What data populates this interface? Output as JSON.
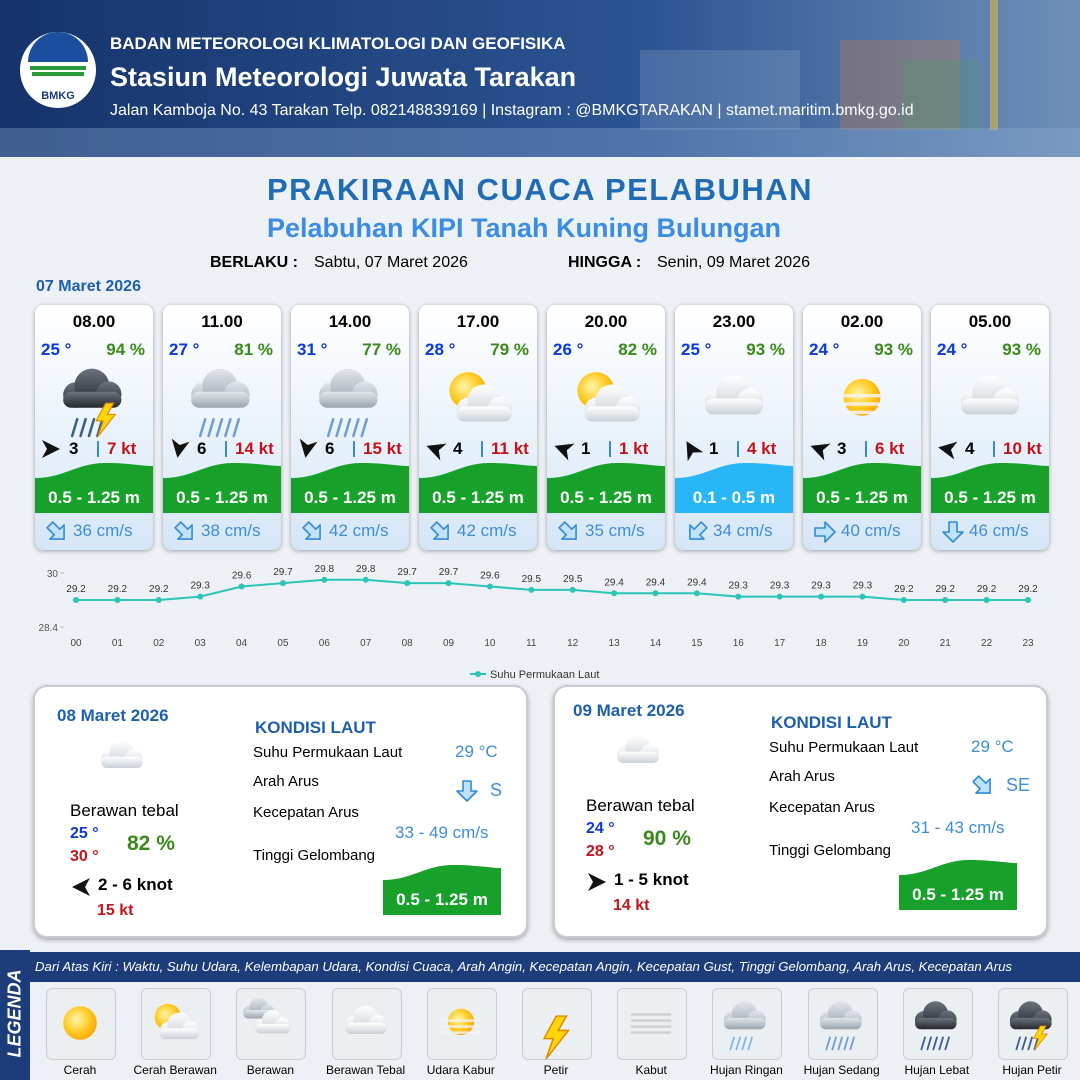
{
  "header": {
    "logo": "BMKG",
    "org": "BADAN METEOROLOGI KLIMATOLOGI DAN GEOFISIKA",
    "station": "Stasiun Meteorologi Juwata Tarakan",
    "contact": "Jalan Kamboja No. 43 Tarakan  Telp. 082148839169 | Instagram : @BMKGTARAKAN | stamet.maritim.bmkg.go.id"
  },
  "title": "PRAKIRAAN CUACA PELABUHAN",
  "subtitle": "Pelabuhan KIPI Tanah Kuning Bulungan",
  "validity": {
    "from_label": "BERLAKU :",
    "from": "Sabtu, 07 Maret 2026",
    "to_label": "HINGGA :",
    "to": "Senin, 09 Maret 2026"
  },
  "today": {
    "date": "07 Maret 2026",
    "forecasts": [
      {
        "time": "08.00",
        "temp": "25 °",
        "humidity": "94 %",
        "icon": "Hujan Petir",
        "wind_dir_deg": 0,
        "wind_speed": "3",
        "gust": "7 kt",
        "wave": "0.5 - 1.25 m",
        "wave_color": "#17a02a",
        "current_dir_deg": 45,
        "current": "36 cm/s"
      },
      {
        "time": "11.00",
        "temp": "27 °",
        "humidity": "81 %",
        "icon": "Hujan Sedang",
        "wind_dir_deg": 100,
        "wind_speed": "6",
        "gust": "14 kt",
        "wave": "0.5 - 1.25 m",
        "wave_color": "#17a02a",
        "current_dir_deg": 45,
        "current": "38 cm/s"
      },
      {
        "time": "14.00",
        "temp": "31 °",
        "humidity": "77 %",
        "icon": "Hujan Sedang",
        "wind_dir_deg": 100,
        "wind_speed": "6",
        "gust": "15 kt",
        "wave": "0.5 - 1.25 m",
        "wave_color": "#17a02a",
        "current_dir_deg": 45,
        "current": "42 cm/s"
      },
      {
        "time": "17.00",
        "temp": "28 °",
        "humidity": "79 %",
        "icon": "Cerah Berawan",
        "wind_dir_deg": 200,
        "wind_speed": "4",
        "gust": "11 kt",
        "wave": "0.5 - 1.25 m",
        "wave_color": "#17a02a",
        "current_dir_deg": 45,
        "current": "42 cm/s"
      },
      {
        "time": "20.00",
        "temp": "26 °",
        "humidity": "82 %",
        "icon": "Cerah Berawan",
        "wind_dir_deg": 200,
        "wind_speed": "1",
        "gust": "1 kt",
        "wave": "0.5 - 1.25 m",
        "wave_color": "#17a02a",
        "current_dir_deg": 45,
        "current": "35 cm/s"
      },
      {
        "time": "23.00",
        "temp": "25 °",
        "humidity": "93 %",
        "icon": "Berawan Tebal",
        "wind_dir_deg": 240,
        "wind_speed": "1",
        "gust": "4 kt",
        "wave": "0.1 - 0.5 m",
        "wave_color": "#29b6f6",
        "current_dir_deg": 135,
        "current": "34 cm/s"
      },
      {
        "time": "02.00",
        "temp": "24 °",
        "humidity": "93 %",
        "icon": "Udara Kabur",
        "wind_dir_deg": 200,
        "wind_speed": "3",
        "gust": "6 kt",
        "wave": "0.5 - 1.25 m",
        "wave_color": "#17a02a",
        "current_dir_deg": 0,
        "current": "40 cm/s"
      },
      {
        "time": "05.00",
        "temp": "24 °",
        "humidity": "93 %",
        "icon": "Berawan Tebal",
        "wind_dir_deg": 190,
        "wind_speed": "4",
        "gust": "10 kt",
        "wave": "0.5 - 1.25 m",
        "wave_color": "#17a02a",
        "current_dir_deg": 90,
        "current": "46 cm/s"
      }
    ]
  },
  "chart_data": {
    "type": "line",
    "categories": [
      "00",
      "01",
      "02",
      "03",
      "04",
      "05",
      "06",
      "07",
      "08",
      "09",
      "10",
      "11",
      "12",
      "13",
      "14",
      "15",
      "16",
      "17",
      "18",
      "19",
      "20",
      "21",
      "22",
      "23"
    ],
    "series": [
      {
        "name": "Suhu Permukaan Laut",
        "color": "#2cc4b6",
        "values": [
          29.2,
          29.2,
          29.2,
          29.3,
          29.6,
          29.7,
          29.8,
          29.8,
          29.7,
          29.7,
          29.6,
          29.5,
          29.5,
          29.4,
          29.4,
          29.4,
          29.3,
          29.3,
          29.3,
          29.3,
          29.2,
          29.2,
          29.2,
          29.2
        ]
      }
    ],
    "ylim": [
      28.4,
      30
    ],
    "yticks": [
      28.4,
      30
    ]
  },
  "days": [
    {
      "date": "08 Maret 2026",
      "icon": "Berawan Tebal",
      "condition": "Berawan tebal",
      "temp_min": "25 °",
      "temp_max": "30 °",
      "humidity": "82 %",
      "wind_dir_deg": 180,
      "wind": "2  - 6 knot",
      "gust": "15 kt",
      "sea_title": "KONDISI LAUT",
      "sst_label": "Suhu Permukaan Laut",
      "sst": "29 °C",
      "current_dir_label": "Arah Arus",
      "current_dir_deg": 90,
      "current_dir": "S",
      "current_speed_label": "Kecepatan Arus",
      "current_speed": "33 - 49 cm/s",
      "wave_label": "Tinggi Gelombang",
      "wave": "0.5 - 1.25 m",
      "wave_color": "#17a02a"
    },
    {
      "date": "09 Maret 2026",
      "icon": "Berawan Tebal",
      "condition": "Berawan tebal",
      "temp_min": "24 °",
      "temp_max": "28 °",
      "humidity": "90 %",
      "wind_dir_deg": 0,
      "wind": "1  - 5 knot",
      "gust": "14 kt",
      "sea_title": "KONDISI LAUT",
      "sst_label": "Suhu Permukaan Laut",
      "sst": "29 °C",
      "current_dir_label": "Arah Arus",
      "current_dir_deg": 45,
      "current_dir": "SE",
      "current_speed_label": "Kecepatan Arus",
      "current_speed": "31 - 43 cm/s",
      "wave_label": "Tinggi Gelombang",
      "wave": "0.5 - 1.25 m",
      "wave_color": "#17a02a"
    }
  ],
  "legend": {
    "title": "LEGENDA",
    "description": "Dari Atas Kiri : Waktu, Suhu Udara, Kelembapan Udara, Kondisi Cuaca, Arah Angin, Kecepatan Angin, Kecepatan Gust, Tinggi Gelombang, Arah Arus, Kecepatan Arus",
    "items": [
      "Cerah",
      "Cerah Berawan",
      "Berawan",
      "Berawan Tebal",
      "Udara Kabur",
      "Petir",
      "Kabut",
      "Hujan Ringan",
      "Hujan Sedang",
      "Hujan Lebat",
      "Hujan Petir"
    ]
  }
}
